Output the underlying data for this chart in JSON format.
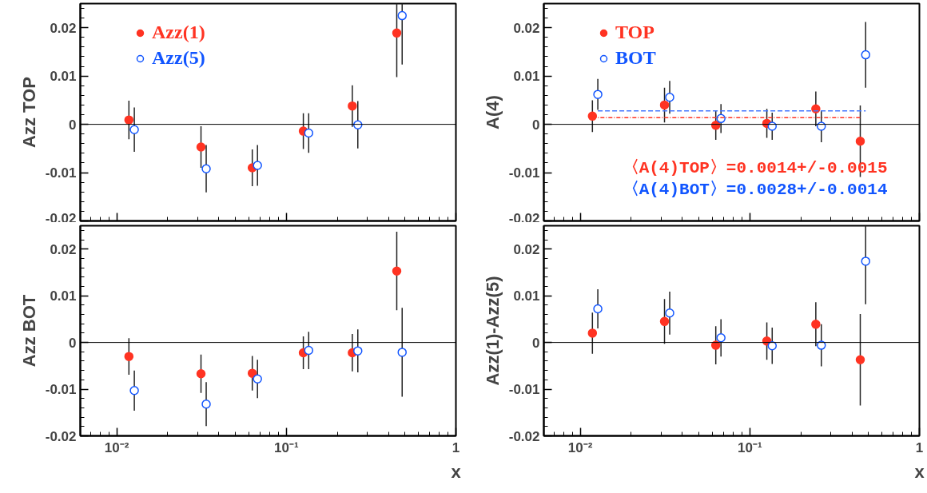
{
  "chart_data": [
    {
      "type": "scatter",
      "ylabel": "Azz TOP",
      "log": "x",
      "xlim": [
        0.0061,
        1
      ],
      "ylim": [
        -0.02,
        0.025
      ],
      "xticks": [
        {
          "value": 0.01,
          "label": null
        },
        {
          "value": 0.1,
          "label": null
        },
        {
          "value": 1,
          "label": null
        }
      ],
      "yticks": [
        -0.02,
        -0.01,
        0,
        0.01,
        0.02
      ],
      "tick_labels": "y",
      "marker": "circle",
      "legend": "top left",
      "ref_lines": [
        {
          "axis": "y",
          "value": 0,
          "color": "#000000"
        }
      ],
      "series": [
        {
          "name": "Azz(1)",
          "color": "#ff3322",
          "x": [
            0.0118,
            0.0314,
            0.063,
            0.126,
            0.245,
            0.448
          ],
          "values": [
            0.0009,
            -0.0047,
            -0.009,
            -0.0014,
            0.0038,
            0.0189
          ],
          "errors": [
            0.004,
            0.0043,
            0.0038,
            0.0037,
            0.0043,
            [
              0.0098,
              0.025
            ]
          ]
        },
        {
          "name": "Azz(5)",
          "color": "#1155ff",
          "x": [
            0.0127,
            0.0337,
            0.0676,
            0.1355,
            0.264,
            0.482
          ],
          "values": [
            -0.0011,
            -0.0092,
            -0.0085,
            -0.0018,
            -0.0001,
            0.0225
          ],
          "errors": [
            0.0046,
            0.0049,
            0.0042,
            0.0041,
            0.0049,
            [
              0.0124,
              0.025
            ]
          ]
        }
      ]
    },
    {
      "type": "scatter",
      "ylabel": "A(4)",
      "log": "x",
      "xlim": [
        0.0061,
        1
      ],
      "ylim": [
        -0.02,
        0.025
      ],
      "xticks": [
        {
          "value": 0.01,
          "label": null
        },
        {
          "value": 0.1,
          "label": null
        },
        {
          "value": 1,
          "label": null
        }
      ],
      "yticks": [
        -0.02,
        -0.01,
        0,
        0.01,
        0.02
      ],
      "tick_labels": "y",
      "marker": "circle",
      "legend": "top left",
      "ref_lines": [
        {
          "axis": "y",
          "value": 0,
          "color": "#000000"
        }
      ],
      "annotations": [
        "〈A(4)TOP〉=0.0014+/-0.0015",
        "〈A(4)BOT〉=0.0028+/-0.0014"
      ],
      "series": [
        {
          "name": "TOP",
          "color": "#ff3322",
          "x": [
            0.0118,
            0.0314,
            0.063,
            0.126,
            0.245,
            0.448
          ],
          "values": [
            0.0017,
            0.004,
            -0.0002,
            0.0002,
            0.0032,
            -0.0035
          ],
          "errors": [
            0.0033,
            0.0036,
            0.003,
            0.003,
            0.0036,
            0.0074
          ]
        },
        {
          "name": "BOT",
          "color": "#1155ff",
          "x": [
            0.0127,
            0.0337,
            0.0676,
            0.1355,
            0.264,
            0.482
          ],
          "values": [
            0.0062,
            0.0056,
            0.0012,
            -0.0004,
            -0.0004,
            0.0144
          ],
          "errors": [
            0.0032,
            0.0034,
            0.003,
            0.0028,
            0.0033,
            0.0068
          ]
        },
        {
          "type": "line",
          "color": "#ff3322",
          "line_style": "dotted",
          "marker": "none",
          "x": [
            0.0118,
            0.448
          ],
          "values": [
            0.0014,
            0.0014
          ]
        },
        {
          "type": "line",
          "color": "#4477ff",
          "line_style": "dashed",
          "marker": "none",
          "x": [
            0.0127,
            0.482
          ],
          "values": [
            0.0028,
            0.0028
          ]
        }
      ]
    },
    {
      "type": "scatter",
      "ylabel": "Azz BOT",
      "xlabel": "x",
      "log": "x",
      "xlim": [
        0.0061,
        1
      ],
      "ylim": [
        -0.02,
        0.025
      ],
      "xticks": [
        {
          "value": 0.01,
          "label": "10⁻²"
        },
        {
          "value": 0.1,
          "label": "10⁻¹"
        },
        {
          "value": 1,
          "label": "1"
        }
      ],
      "yticks": [
        -0.02,
        -0.01,
        0,
        0.01,
        0.02
      ],
      "marker": "circle",
      "ref_lines": [
        {
          "axis": "y",
          "value": 0,
          "color": "#000000"
        }
      ],
      "series": [
        {
          "color": "#ff3322",
          "x": [
            0.0118,
            0.0314,
            0.063,
            0.126,
            0.245,
            0.448
          ],
          "values": [
            -0.003,
            -0.0067,
            -0.0066,
            -0.0022,
            -0.0022,
            0.0153
          ],
          "errors": [
            0.0039,
            0.0041,
            0.0037,
            0.0035,
            0.004,
            0.0084
          ]
        },
        {
          "color": "#1155ff",
          "x": [
            0.0127,
            0.0337,
            0.0676,
            0.1355,
            0.264,
            0.482
          ],
          "values": [
            -0.0103,
            -0.0132,
            -0.0078,
            -0.0017,
            -0.0018,
            -0.0021
          ],
          "errors": [
            0.0043,
            0.0047,
            0.0041,
            0.004,
            0.0046,
            0.0095
          ]
        }
      ]
    },
    {
      "type": "scatter",
      "ylabel": "Azz(1)-Azz(5)",
      "xlabel": "x",
      "log": "x",
      "xlim": [
        0.0061,
        1
      ],
      "ylim": [
        -0.02,
        0.025
      ],
      "xticks": [
        {
          "value": 0.01,
          "label": "10⁻²"
        },
        {
          "value": 0.1,
          "label": "10⁻¹"
        },
        {
          "value": 1,
          "label": "1"
        }
      ],
      "yticks": [
        -0.02,
        -0.01,
        0,
        0.01,
        0.02
      ],
      "marker": "circle",
      "ref_lines": [
        {
          "axis": "y",
          "value": 0,
          "color": "#000000"
        }
      ],
      "series": [
        {
          "color": "#ff3322",
          "x": [
            0.0118,
            0.0314,
            0.063,
            0.126,
            0.245,
            0.448
          ],
          "values": [
            0.002,
            0.0045,
            -0.0006,
            0.0003,
            0.0039,
            -0.0037
          ],
          "errors": [
            0.0044,
            0.0048,
            0.0041,
            0.004,
            0.0047,
            0.0098
          ]
        },
        {
          "color": "#1155ff",
          "x": [
            0.0127,
            0.0337,
            0.0676,
            0.1355,
            0.264,
            0.482
          ],
          "values": [
            0.0072,
            0.0063,
            0.001,
            -0.0007,
            -0.0006,
            0.0174
          ],
          "errors": [
            0.0042,
            0.0046,
            0.004,
            0.0039,
            0.0045,
            [
              0.0082,
              0.025
            ]
          ]
        }
      ]
    }
  ]
}
